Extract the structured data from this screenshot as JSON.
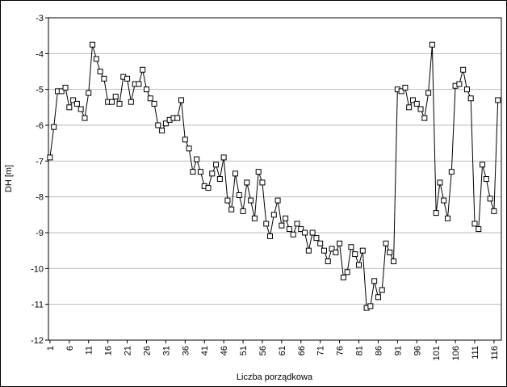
{
  "chart_data": {
    "type": "line",
    "x_label": "Liczba porządkowa",
    "y_label": "DH [m]",
    "x": [
      1,
      2,
      3,
      4,
      5,
      6,
      7,
      8,
      9,
      10,
      11,
      12,
      13,
      14,
      15,
      16,
      17,
      18,
      19,
      20,
      21,
      22,
      23,
      24,
      25,
      26,
      27,
      28,
      29,
      30,
      31,
      32,
      33,
      34,
      35,
      36,
      37,
      38,
      39,
      40,
      41,
      42,
      43,
      44,
      45,
      46,
      47,
      48,
      49,
      50,
      51,
      52,
      53,
      54,
      55,
      56,
      57,
      58,
      59,
      60,
      61,
      62,
      63,
      64,
      65,
      66,
      67,
      68,
      69,
      70,
      71,
      72,
      73,
      74,
      75,
      76,
      77,
      78,
      79,
      80,
      81,
      82,
      83,
      84,
      85,
      86,
      87,
      88,
      89,
      90,
      91,
      92,
      93,
      94,
      95,
      96,
      97,
      98,
      99,
      100,
      101,
      102,
      103,
      104,
      105,
      106,
      107,
      108,
      109,
      110,
      111,
      112,
      113,
      114,
      115,
      116,
      117
    ],
    "series": [
      {
        "color": "#000000",
        "values": [
          -6.9,
          -6.05,
          -5.05,
          -5.05,
          -4.95,
          -5.5,
          -5.3,
          -5.4,
          -5.55,
          -5.8,
          -5.1,
          -3.75,
          -4.15,
          -4.5,
          -4.7,
          -5.35,
          -5.35,
          -5.2,
          -5.4,
          -4.65,
          -4.7,
          -5.35,
          -4.85,
          -4.85,
          -4.45,
          -5.0,
          -5.25,
          -5.4,
          -6.0,
          -6.15,
          -5.95,
          -5.85,
          -5.8,
          -5.8,
          -5.3,
          -6.4,
          -6.65,
          -7.3,
          -6.95,
          -7.3,
          -7.7,
          -7.75,
          -7.35,
          -7.1,
          -7.5,
          -6.9,
          -8.1,
          -8.35,
          -7.35,
          -7.95,
          -8.4,
          -7.6,
          -8.1,
          -8.6,
          -7.3,
          -7.6,
          -8.75,
          -9.1,
          -8.5,
          -8.1,
          -8.8,
          -8.6,
          -8.9,
          -9.05,
          -8.75,
          -8.9,
          -9.0,
          -9.5,
          -9.0,
          -9.15,
          -9.3,
          -9.5,
          -9.8,
          -9.45,
          -9.55,
          -9.3,
          -10.25,
          -10.1,
          -9.4,
          -9.6,
          -9.9,
          -9.5,
          -11.1,
          -11.05,
          -10.35,
          -10.8,
          -10.6,
          -9.3,
          -9.55,
          -9.8,
          -5.0,
          -5.05,
          -4.95,
          -5.5,
          -5.3,
          -5.4,
          -5.55,
          -5.8,
          -5.1,
          -3.75,
          -8.45,
          -7.6,
          -8.1,
          -8.6,
          -7.3,
          -4.9,
          -4.85,
          -4.45,
          -5.0,
          -5.25,
          -8.75,
          -8.9,
          -7.1,
          -7.5,
          -8.05,
          -8.4,
          -5.3
        ]
      }
    ],
    "xlim": [
      0.6,
      117.9
    ],
    "xticks": [
      1,
      6,
      11,
      16,
      21,
      26,
      31,
      36,
      41,
      46,
      51,
      56,
      61,
      66,
      71,
      76,
      81,
      86,
      91,
      96,
      101,
      106,
      111,
      116
    ],
    "ylim": [
      -12,
      -3
    ],
    "yticks": [
      -3,
      -4,
      -5,
      -6,
      -7,
      -8,
      -9,
      -10,
      -11,
      -12
    ],
    "grid": true
  }
}
